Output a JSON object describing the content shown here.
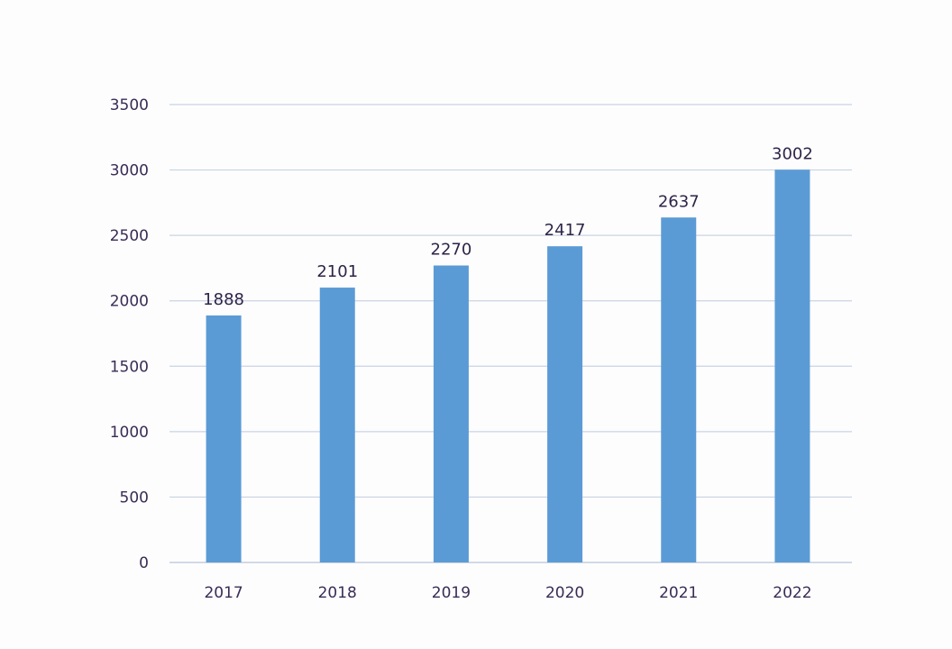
{
  "chart_data": {
    "type": "bar",
    "title": "",
    "xlabel": "",
    "ylabel": "",
    "categories": [
      "2017",
      "2018",
      "2019",
      "2020",
      "2021",
      "2022"
    ],
    "values": [
      1888,
      2101,
      2270,
      2417,
      2637,
      3002
    ],
    "ylim": [
      0,
      3500
    ],
    "yticks": [
      0,
      500,
      1000,
      1500,
      2000,
      2500,
      3000,
      3500
    ],
    "grid": true,
    "legend": "none",
    "bar_color": "#5b9bd5",
    "grid_color": "#c9d3e3"
  }
}
